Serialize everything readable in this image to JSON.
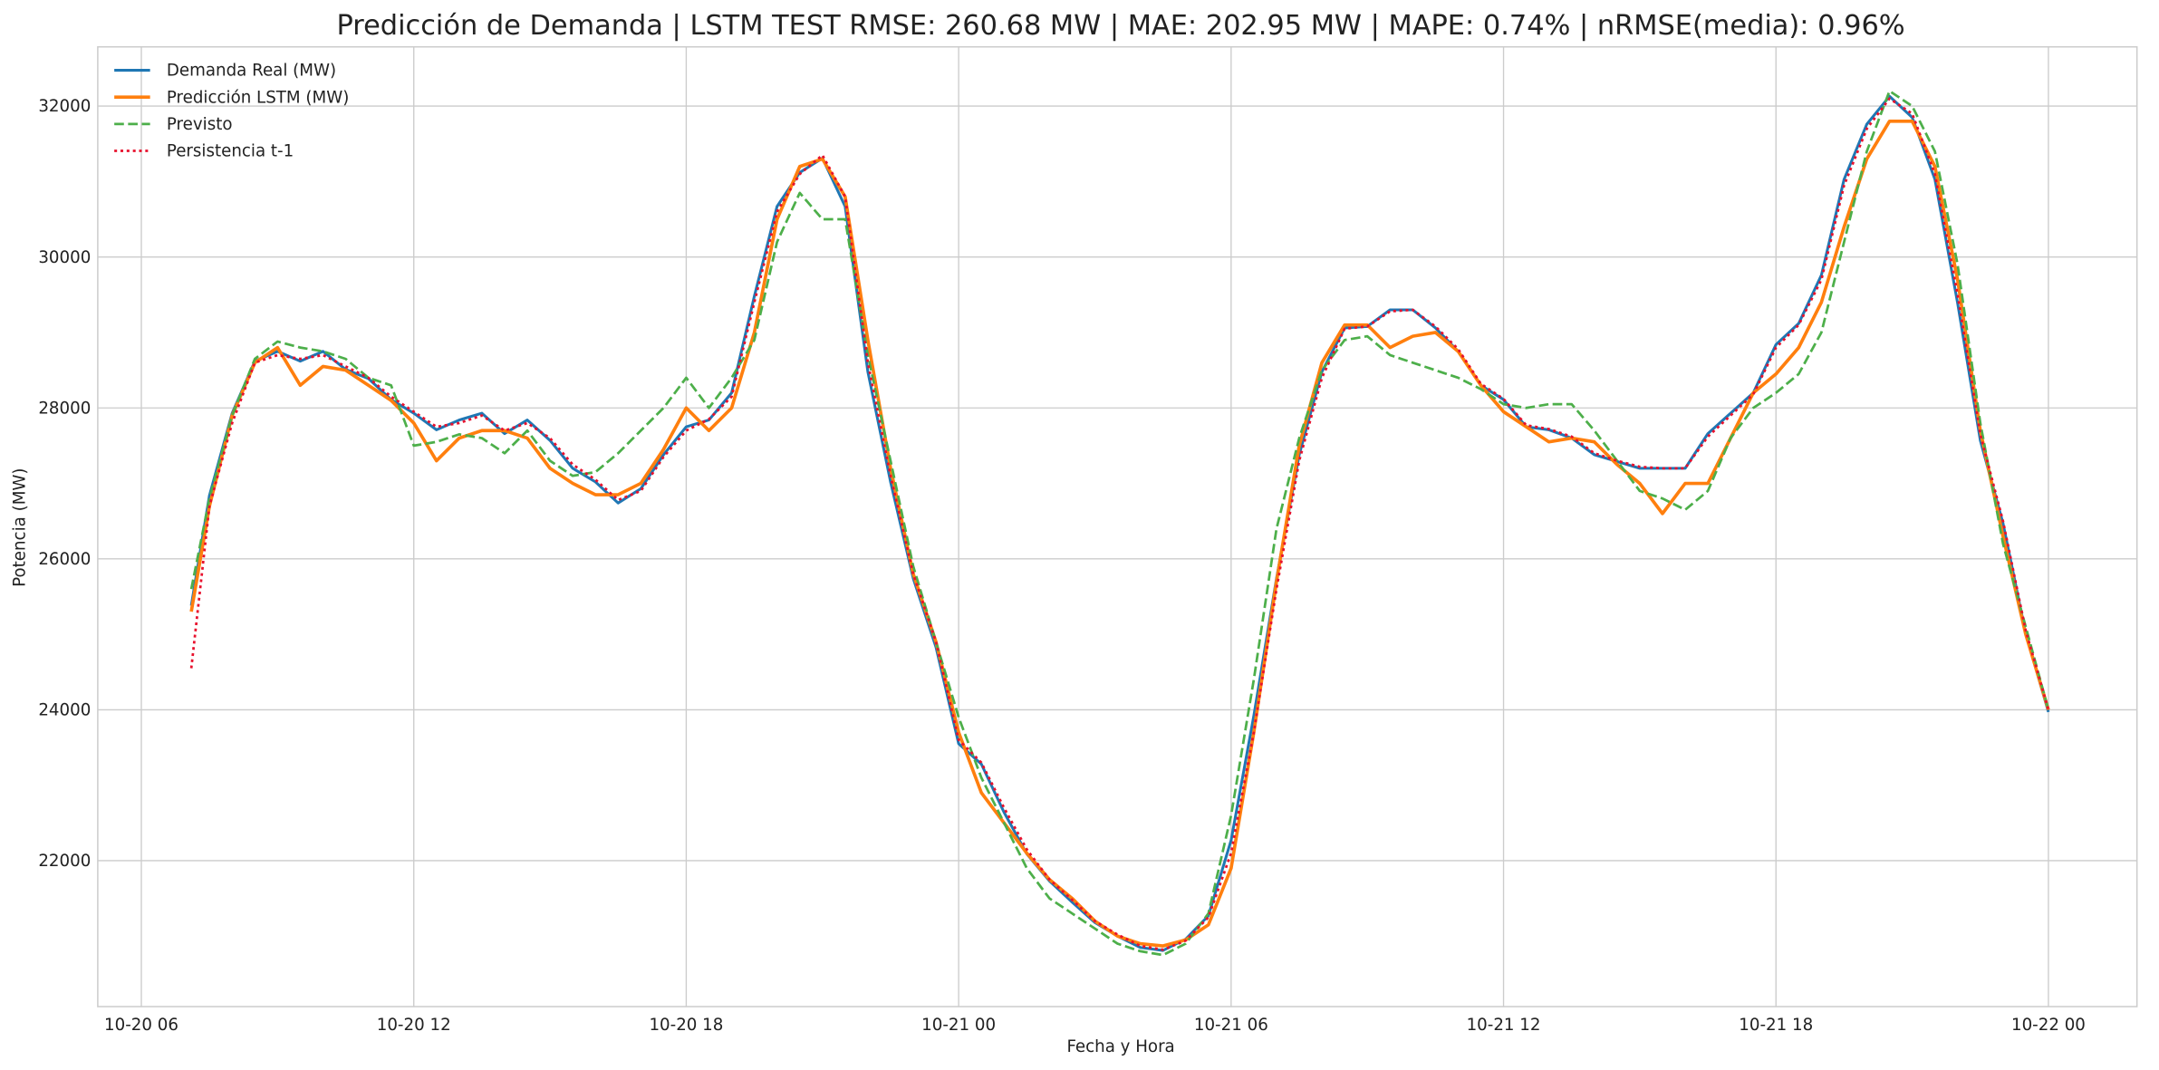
{
  "chart_data": {
    "type": "line",
    "title": "Predicción de Demanda | LSTM TEST RMSE: 260.68 MW | MAE: 202.95 MW | MAPE: 0.74% | nRMSE(media): 0.96%",
    "x_label": "Fecha y Hora",
    "y_label": "Potencia (MW)",
    "grid": true,
    "legend": "upper left",
    "xlim": [
      5.04,
      49.95
    ],
    "ylim": [
      20066,
      32785
    ],
    "xticks": [
      {
        "value": 6,
        "label": "10-20 06"
      },
      {
        "value": 12,
        "label": "10-20 12"
      },
      {
        "value": 18,
        "label": "10-20 18"
      },
      {
        "value": 24,
        "label": "10-21 00"
      },
      {
        "value": 30,
        "label": "10-21 06"
      },
      {
        "value": 36,
        "label": "10-21 12"
      },
      {
        "value": 42,
        "label": "10-21 18"
      },
      {
        "value": 48,
        "label": "10-22 00"
      }
    ],
    "yticks": [
      22000,
      24000,
      26000,
      28000,
      30000,
      32000
    ],
    "x": [
      7.1,
      7.5,
      8,
      8.5,
      9,
      9.5,
      10,
      10.5,
      11,
      11.5,
      12,
      12.5,
      13,
      13.5,
      14,
      14.5,
      15,
      15.5,
      16,
      16.5,
      17,
      17.5,
      18,
      18.5,
      19,
      19.5,
      20,
      20.5,
      21,
      21.5,
      22,
      22.5,
      23,
      23.5,
      24,
      24.5,
      25,
      25.5,
      26,
      26.5,
      27,
      27.5,
      28,
      28.5,
      29,
      29.5,
      30,
      30.5,
      31,
      31.5,
      32,
      32.5,
      33,
      33.5,
      34,
      34.5,
      35,
      35.5,
      36,
      36.5,
      37,
      37.5,
      38,
      38.5,
      39,
      39.5,
      40,
      40.5,
      41,
      41.5,
      42,
      42.5,
      43,
      43.5,
      44,
      44.5,
      45,
      45.5,
      46,
      46.5,
      47,
      47.5,
      48
    ],
    "series": [
      {
        "name": "Demanda Real (MW)",
        "color": "#1f77b4",
        "linestyle": "solid",
        "linewidth": 2,
        "values": [
          25380,
          26840,
          27930,
          28620,
          28750,
          28620,
          28750,
          28510,
          28390,
          28110,
          27930,
          27710,
          27840,
          27930,
          27660,
          27840,
          27570,
          27200,
          27020,
          26740,
          26930,
          27380,
          27750,
          27840,
          28200,
          29480,
          30670,
          31120,
          31310,
          30670,
          28480,
          27020,
          25740,
          24830,
          23550,
          23280,
          22640,
          22090,
          21730,
          21450,
          21180,
          21000,
          20850,
          20810,
          20960,
          21270,
          22270,
          23920,
          25740,
          27380,
          28480,
          29060,
          29080,
          29300,
          29300,
          29060,
          28750,
          28300,
          28110,
          27750,
          27710,
          27600,
          27380,
          27290,
          27200,
          27200,
          27200,
          27660,
          27930,
          28200,
          28840,
          29120,
          29760,
          31030,
          31760,
          32130,
          31850,
          31030,
          29390,
          27570,
          26470,
          25010,
          23970
        ]
      },
      {
        "name": "Predicción LSTM (MW)",
        "color": "#ff7f0e",
        "linestyle": "solid",
        "linewidth": 2.4,
        "values": [
          25300,
          26700,
          27900,
          28600,
          28800,
          28300,
          28550,
          28500,
          28300,
          28100,
          27800,
          27300,
          27600,
          27700,
          27700,
          27600,
          27200,
          27000,
          26850,
          26850,
          27000,
          27450,
          28000,
          27700,
          28000,
          29000,
          30500,
          31200,
          31300,
          30800,
          28900,
          27200,
          25800,
          24900,
          23700,
          22900,
          22500,
          22100,
          21750,
          21500,
          21200,
          21000,
          20900,
          20870,
          20950,
          21150,
          21900,
          23700,
          25700,
          27500,
          28600,
          29100,
          29100,
          28800,
          28950,
          29000,
          28750,
          28300,
          27950,
          27750,
          27550,
          27600,
          27550,
          27250,
          27000,
          26600,
          27000,
          27000,
          27600,
          28200,
          28450,
          28800,
          29400,
          30400,
          31300,
          31800,
          31800,
          31200,
          29700,
          27700,
          26300,
          25000,
          24000
        ]
      },
      {
        "name": "Previsto",
        "color": "#4daf4a",
        "linestyle": "dashed",
        "linewidth": 1.8,
        "values": [
          25600,
          26800,
          27900,
          28650,
          28880,
          28800,
          28750,
          28650,
          28400,
          28300,
          27500,
          27550,
          27650,
          27600,
          27400,
          27700,
          27300,
          27100,
          27150,
          27400,
          27700,
          28000,
          28400,
          28000,
          28400,
          28900,
          30200,
          30850,
          30500,
          30500,
          28700,
          27300,
          25900,
          24900,
          23900,
          23100,
          22500,
          21900,
          21500,
          21300,
          21100,
          20900,
          20800,
          20750,
          20900,
          21300,
          22600,
          24400,
          26400,
          27600,
          28500,
          28900,
          28950,
          28700,
          28600,
          28500,
          28400,
          28250,
          28050,
          28000,
          28050,
          28050,
          27700,
          27300,
          26900,
          26800,
          26650,
          26900,
          27600,
          28000,
          28200,
          28450,
          29000,
          30200,
          31400,
          32200,
          32000,
          31400,
          29900,
          27800,
          26200,
          25100,
          24000
        ]
      },
      {
        "name": "Persistencia t-1",
        "color": "#e8112d",
        "linestyle": "dotted",
        "linewidth": 1.8,
        "values": [
          24550,
          26700,
          27800,
          28600,
          28700,
          28650,
          28700,
          28550,
          28400,
          28150,
          27950,
          27750,
          27800,
          27900,
          27700,
          27800,
          27600,
          27250,
          27050,
          26780,
          26900,
          27350,
          27700,
          27850,
          28150,
          29400,
          30600,
          31100,
          31350,
          30800,
          28600,
          27100,
          25800,
          24900,
          23600,
          23300,
          22700,
          22150,
          21750,
          21480,
          21200,
          21020,
          20870,
          20820,
          20940,
          21250,
          22100,
          23700,
          25600,
          27300,
          28400,
          29050,
          29080,
          29280,
          29300,
          29080,
          28780,
          28320,
          28120,
          27770,
          27720,
          27620,
          27400,
          27300,
          27220,
          27200,
          27200,
          27620,
          27900,
          28180,
          28800,
          29100,
          29700,
          30950,
          31700,
          32100,
          31900,
          31100,
          29500,
          27650,
          26500,
          25050,
          24000
        ]
      }
    ]
  }
}
